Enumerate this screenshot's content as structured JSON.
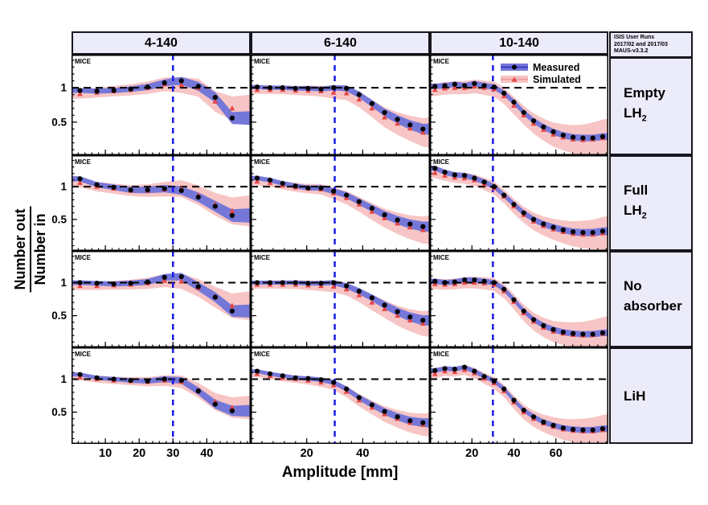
{
  "figure": {
    "watermark": "MICE",
    "x_axis_label": "Amplitude [mm]",
    "y_axis_label_top": "Number out",
    "y_axis_label_bottom": "Number in",
    "columns": [
      "4-140",
      "6-140",
      "10-140"
    ],
    "rows": [
      {
        "line1": "Empty",
        "line2": "LH",
        "sub": "2"
      },
      {
        "line1": "Full",
        "line2": "LH",
        "sub": "2"
      },
      {
        "line1": "No",
        "line2": "absorber",
        "sub": ""
      },
      {
        "line1": "LiH",
        "line2": "",
        "sub": ""
      }
    ],
    "info_box": {
      "line1": "ISIS User Runs",
      "line2": "2017/02 and 2017/03",
      "line3": "MAUS-v3.3.2"
    },
    "legend": [
      {
        "label": "Measured",
        "marker": "black-dot-blue-band"
      },
      {
        "label": "Simulated",
        "marker": "red-triangle-pink-band"
      }
    ],
    "colors": {
      "measured_band": "#7577d8",
      "measured_line": "#3a3ac0",
      "simulated_band": "#f7c5c5",
      "simulated_line": "#eea0a0",
      "measured_marker": "#000000",
      "simulated_marker": "#e64545",
      "cut_line": "#1a1ae6",
      "reference_line": "#000000",
      "header_bg": "#ebebfa"
    }
  },
  "chart_data": {
    "type": "line",
    "x_label": "Amplitude [mm]",
    "y_label": "Number out / Number in",
    "y_range": [
      0.02,
      1.48
    ],
    "y_ticks": [
      {
        "v": 0.5,
        "label": "0.5"
      },
      {
        "v": 1,
        "label": "1"
      }
    ],
    "y_minor_step": 0.1,
    "reference_line_y": 1,
    "cut_line_x": 30,
    "legend_position": "top-right of panel row 0 col 2",
    "grid": "3 columns x 4 rows",
    "columns": [
      {
        "label": "4-140",
        "x_max": 53,
        "x_ticks": [
          10,
          20,
          30,
          40
        ],
        "x_minor_step": 2,
        "x": [
          2.5,
          7.5,
          12.5,
          17.5,
          22.5,
          27.5,
          32.5,
          37.5,
          42.5,
          47.5
        ]
      },
      {
        "label": "6-140",
        "x_max": 64,
        "x_ticks": [
          20,
          40
        ],
        "x_minor_step": 4,
        "x": [
          2.3,
          6.9,
          11.4,
          16,
          20.5,
          25.1,
          29.6,
          34.2,
          38.7,
          43.3,
          47.8,
          52.4,
          56.9,
          61.5
        ]
      },
      {
        "label": "10-140",
        "x_max": 85,
        "x_ticks": [
          20,
          40,
          60
        ],
        "x_minor_step": 4,
        "x": [
          2.4,
          7.1,
          11.8,
          16.5,
          21.2,
          25.9,
          30.6,
          35.3,
          40,
          44.7,
          49.4,
          54.1,
          58.8,
          63.5,
          68.2,
          72.9,
          77.6,
          82.3
        ]
      }
    ],
    "rows": [
      {
        "label": "Empty LH2",
        "key": "empty-lh2"
      },
      {
        "label": "Full LH2",
        "key": "full-lh2"
      },
      {
        "label": "No absorber",
        "key": "no-absorber"
      },
      {
        "label": "LiH",
        "key": "lih"
      }
    ],
    "series_names": [
      "Measured",
      "Simulated"
    ],
    "panels": [
      {
        "row": 0,
        "col": 0,
        "measured": [
          0.96,
          0.95,
          0.96,
          0.98,
          1.01,
          1.07,
          1.1,
          1.02,
          0.86,
          0.56
        ],
        "simulated": [
          0.91,
          0.93,
          0.95,
          0.97,
          1.0,
          1.05,
          1.04,
          1.0,
          0.8,
          0.7
        ],
        "stat_band": [
          0.035,
          0.1
        ],
        "total_band": [
          0.07,
          0.2
        ]
      },
      {
        "row": 0,
        "col": 1,
        "measured": [
          1.01,
          1.0,
          1.0,
          0.99,
          0.99,
          0.98,
          1.0,
          0.99,
          0.9,
          0.77,
          0.64,
          0.54,
          0.46,
          0.4
        ],
        "simulated": [
          0.97,
          0.97,
          0.97,
          0.96,
          0.96,
          0.95,
          0.93,
          0.92,
          0.83,
          0.7,
          0.57,
          0.48,
          0.41,
          0.35
        ],
        "stat_band": [
          0.03,
          0.08
        ],
        "total_band": [
          0.06,
          0.22
        ]
      },
      {
        "row": 0,
        "col": 2,
        "measured": [
          1.02,
          1.03,
          1.05,
          1.03,
          1.06,
          1.03,
          1.01,
          0.92,
          0.79,
          0.64,
          0.52,
          0.43,
          0.36,
          0.31,
          0.28,
          0.27,
          0.27,
          0.29
        ],
        "simulated": [
          0.97,
          0.99,
          1.0,
          1.0,
          1.02,
          1.0,
          0.98,
          0.88,
          0.74,
          0.6,
          0.48,
          0.39,
          0.32,
          0.28,
          0.25,
          0.24,
          0.25,
          0.27
        ],
        "stat_band": [
          0.04,
          0.05
        ],
        "total_band": [
          0.09,
          0.28
        ]
      },
      {
        "row": 1,
        "col": 0,
        "measured": [
          1.12,
          1.03,
          0.99,
          0.95,
          0.95,
          0.97,
          0.94,
          0.84,
          0.7,
          0.56
        ],
        "simulated": [
          1.06,
          1.0,
          0.97,
          0.94,
          0.94,
          0.96,
          0.97,
          0.87,
          0.73,
          0.63
        ],
        "stat_band": [
          0.04,
          0.11
        ],
        "total_band": [
          0.07,
          0.24
        ]
      },
      {
        "row": 1,
        "col": 1,
        "measured": [
          1.13,
          1.1,
          1.05,
          1.01,
          0.98,
          0.98,
          0.93,
          0.87,
          0.77,
          0.67,
          0.57,
          0.49,
          0.43,
          0.39
        ],
        "simulated": [
          1.08,
          1.06,
          1.02,
          0.99,
          0.97,
          0.96,
          0.9,
          0.83,
          0.73,
          0.62,
          0.52,
          0.44,
          0.38,
          0.34
        ],
        "stat_band": [
          0.035,
          0.08
        ],
        "total_band": [
          0.06,
          0.22
        ]
      },
      {
        "row": 1,
        "col": 2,
        "measured": [
          1.28,
          1.22,
          1.18,
          1.17,
          1.13,
          1.07,
          1.0,
          0.87,
          0.73,
          0.6,
          0.5,
          0.43,
          0.38,
          0.34,
          0.31,
          0.3,
          0.3,
          0.32
        ],
        "simulated": [
          1.21,
          1.17,
          1.14,
          1.13,
          1.1,
          1.04,
          0.98,
          0.85,
          0.7,
          0.57,
          0.47,
          0.4,
          0.35,
          0.31,
          0.28,
          0.27,
          0.27,
          0.29
        ],
        "stat_band": [
          0.04,
          0.06
        ],
        "total_band": [
          0.08,
          0.26
        ]
      },
      {
        "row": 2,
        "col": 0,
        "measured": [
          1.0,
          0.99,
          0.98,
          0.99,
          1.01,
          1.08,
          1.09,
          0.94,
          0.78,
          0.57
        ],
        "simulated": [
          0.95,
          0.95,
          0.96,
          0.97,
          0.99,
          1.03,
          1.02,
          0.92,
          0.78,
          0.65
        ],
        "stat_band": [
          0.035,
          0.1
        ],
        "total_band": [
          0.06,
          0.22
        ]
      },
      {
        "row": 2,
        "col": 1,
        "measured": [
          1.0,
          1.0,
          1.0,
          1.0,
          0.99,
          0.99,
          1.0,
          0.95,
          0.87,
          0.77,
          0.66,
          0.56,
          0.48,
          0.43
        ],
        "simulated": [
          0.97,
          0.97,
          0.97,
          0.97,
          0.96,
          0.95,
          0.94,
          0.9,
          0.81,
          0.7,
          0.6,
          0.5,
          0.43,
          0.38
        ],
        "stat_band": [
          0.03,
          0.08
        ],
        "total_band": [
          0.06,
          0.2
        ]
      },
      {
        "row": 2,
        "col": 2,
        "measured": [
          1.02,
          1.0,
          1.01,
          1.04,
          1.04,
          1.02,
          1.0,
          0.9,
          0.74,
          0.57,
          0.44,
          0.35,
          0.29,
          0.25,
          0.23,
          0.22,
          0.22,
          0.24
        ],
        "simulated": [
          0.98,
          0.97,
          0.98,
          1.0,
          1.0,
          0.99,
          0.97,
          0.87,
          0.71,
          0.54,
          0.41,
          0.32,
          0.26,
          0.23,
          0.21,
          0.2,
          0.21,
          0.23
        ],
        "stat_band": [
          0.04,
          0.05
        ],
        "total_band": [
          0.08,
          0.26
        ]
      },
      {
        "row": 3,
        "col": 0,
        "measured": [
          1.07,
          1.02,
          1.0,
          0.98,
          0.97,
          1.0,
          0.98,
          0.82,
          0.62,
          0.52
        ],
        "simulated": [
          1.03,
          1.0,
          0.98,
          0.97,
          0.96,
          0.98,
          0.96,
          0.83,
          0.66,
          0.57
        ],
        "stat_band": [
          0.03,
          0.09
        ],
        "total_band": [
          0.05,
          0.18
        ]
      },
      {
        "row": 3,
        "col": 1,
        "measured": [
          1.12,
          1.08,
          1.05,
          1.02,
          1.01,
          0.99,
          0.95,
          0.85,
          0.72,
          0.61,
          0.51,
          0.43,
          0.37,
          0.34
        ],
        "simulated": [
          1.08,
          1.05,
          1.02,
          1.0,
          0.98,
          0.95,
          0.91,
          0.81,
          0.68,
          0.57,
          0.47,
          0.4,
          0.34,
          0.31
        ],
        "stat_band": [
          0.03,
          0.07
        ],
        "total_band": [
          0.05,
          0.18
        ]
      },
      {
        "row": 3,
        "col": 2,
        "measured": [
          1.13,
          1.16,
          1.15,
          1.18,
          1.12,
          1.04,
          0.97,
          0.85,
          0.68,
          0.53,
          0.43,
          0.35,
          0.3,
          0.26,
          0.24,
          0.23,
          0.23,
          0.25
        ],
        "simulated": [
          1.08,
          1.12,
          1.11,
          1.14,
          1.09,
          1.01,
          0.94,
          0.82,
          0.65,
          0.5,
          0.4,
          0.33,
          0.28,
          0.24,
          0.22,
          0.21,
          0.21,
          0.23
        ],
        "stat_band": [
          0.035,
          0.05
        ],
        "total_band": [
          0.07,
          0.24
        ]
      }
    ]
  }
}
